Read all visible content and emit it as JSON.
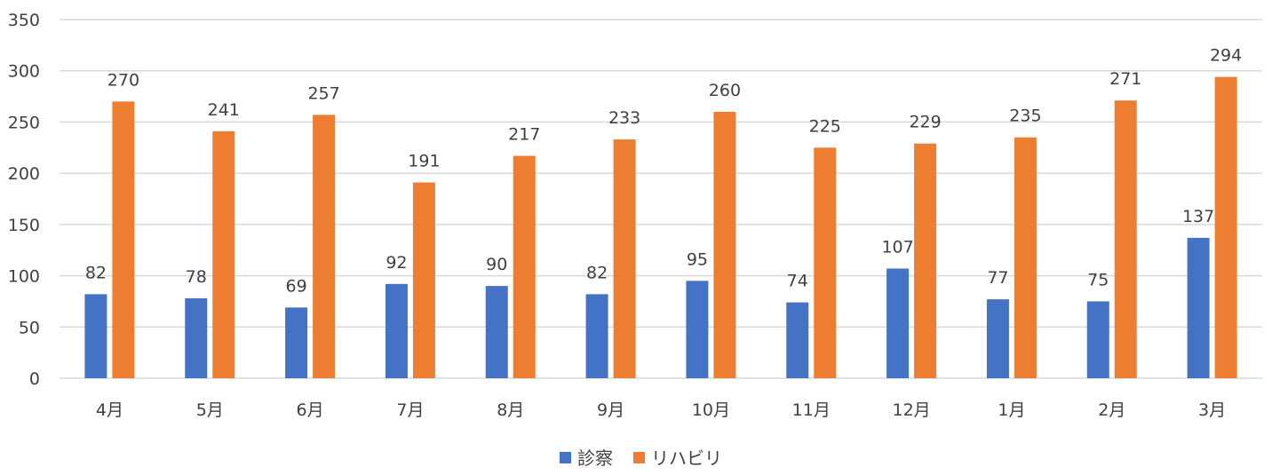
{
  "chart_data": {
    "type": "bar",
    "categories": [
      "4月",
      "5月",
      "6月",
      "7月",
      "8月",
      "9月",
      "10月",
      "11月",
      "12月",
      "1月",
      "2月",
      "3月"
    ],
    "series": [
      {
        "name": "診察",
        "color": "#4472c4",
        "values": [
          82,
          78,
          69,
          92,
          90,
          82,
          95,
          74,
          107,
          77,
          75,
          137
        ]
      },
      {
        "name": "リハビリ",
        "color": "#ed7d31",
        "values": [
          270,
          241,
          257,
          191,
          217,
          233,
          260,
          225,
          229,
          235,
          271,
          294
        ]
      }
    ],
    "ylim": [
      0,
      350
    ],
    "yticks": [
      0,
      50,
      100,
      150,
      200,
      250,
      300,
      350
    ],
    "grid": true,
    "legend_position": "bottom",
    "data_labels": true
  }
}
